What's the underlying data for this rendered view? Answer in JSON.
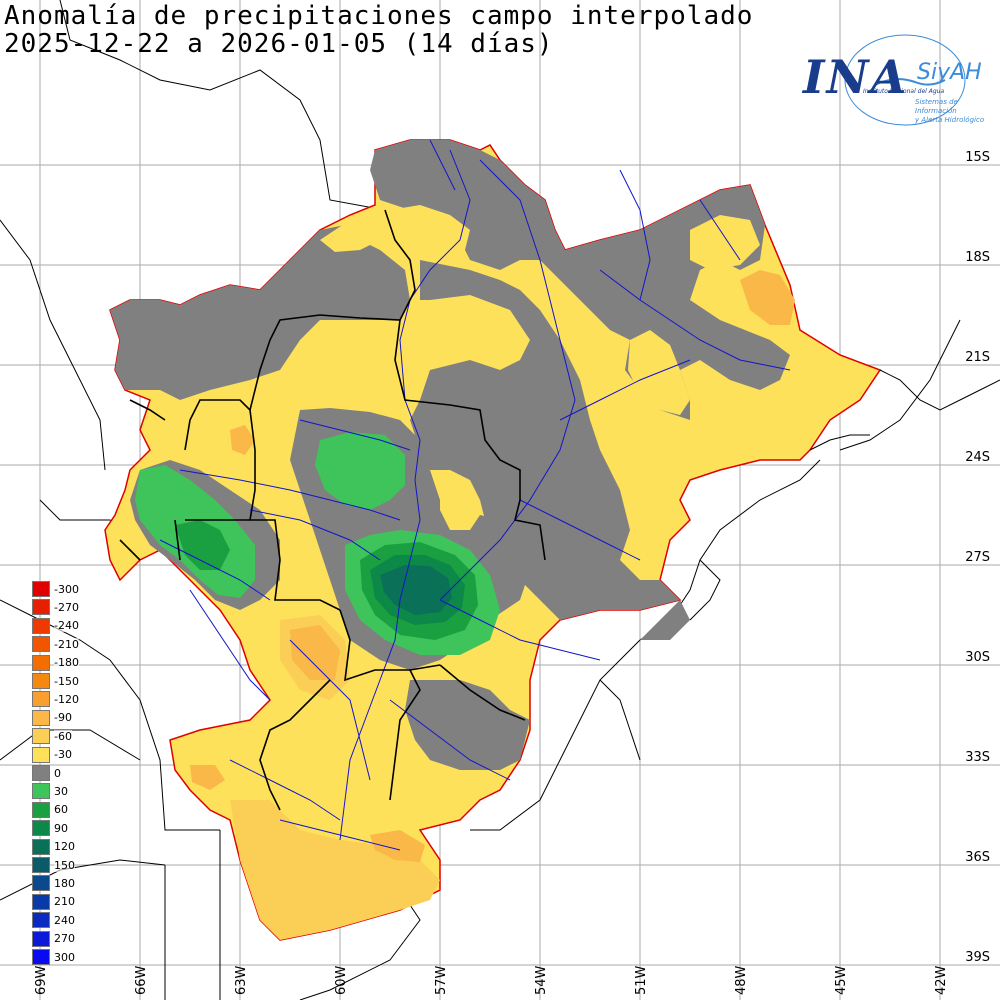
{
  "title": {
    "line1": "Anomalía de precipitaciones campo interpolado",
    "line2": "2025-12-22 a 2026-01-05 (14 días)"
  },
  "logo": {
    "main": "INA",
    "siyah": "SiyAH",
    "sub1": "Instituto Nacional del Agua",
    "sub2a": "Sistemas de Información",
    "sub2b": "y Alerta Hidrológico"
  },
  "axes": {
    "lat_labels": [
      "15S",
      "18S",
      "21S",
      "24S",
      "27S",
      "30S",
      "33S",
      "36S",
      "39S"
    ],
    "lon_labels": [
      "69W",
      "66W",
      "63W",
      "60W",
      "57W",
      "54W",
      "51W",
      "48W",
      "45W",
      "42W"
    ]
  },
  "legend": [
    {
      "label": "-300",
      "color": "#e00000"
    },
    {
      "label": "-270",
      "color": "#e81e00"
    },
    {
      "label": "-240",
      "color": "#ee3a00"
    },
    {
      "label": "-210",
      "color": "#f05500"
    },
    {
      "label": "-180",
      "color": "#f26e00"
    },
    {
      "label": "-150",
      "color": "#f58810"
    },
    {
      "label": "-120",
      "color": "#f7a030"
    },
    {
      "label": "-90",
      "color": "#f9b848"
    },
    {
      "label": "-60",
      "color": "#fbcf55"
    },
    {
      "label": "-30",
      "color": "#fde15a"
    },
    {
      "label": "0",
      "color": "#808080"
    },
    {
      "label": "30",
      "color": "#3ec45a"
    },
    {
      "label": "60",
      "color": "#1aa040"
    },
    {
      "label": "90",
      "color": "#0c8848"
    },
    {
      "label": "120",
      "color": "#0a7058"
    },
    {
      "label": "150",
      "color": "#0a5a68"
    },
    {
      "label": "180",
      "color": "#0a4a8c"
    },
    {
      "label": "210",
      "color": "#0a3aa8"
    },
    {
      "label": "240",
      "color": "#0a2ac0"
    },
    {
      "label": "270",
      "color": "#0a1ad8"
    },
    {
      "label": "300",
      "color": "#0a0af0"
    }
  ]
}
